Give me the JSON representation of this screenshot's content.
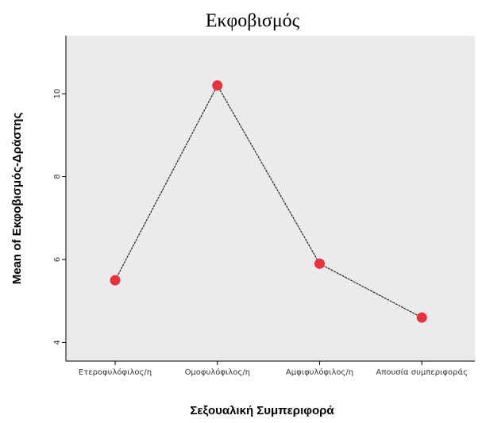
{
  "chart_data": {
    "type": "line",
    "title": "Εκφοβισμός",
    "x_label": "Σεξουαλική Συμπεριφορά",
    "y_label": "Mean of Εκφοβισμός-Δράστης",
    "categories": [
      "Ετεροφυλόφιλος/η",
      "Ομοφυλόφιλος/η",
      "Αμφιφυλόφιλος/η",
      "Απουσία συμπεριφοράς"
    ],
    "values": [
      5.5,
      10.2,
      5.9,
      4.6
    ],
    "color": "#e8323c",
    "line_color": "#222222",
    "ylim": [
      3.55,
      11.4
    ],
    "yticks": [
      4,
      6,
      8,
      10
    ],
    "grid": false
  }
}
